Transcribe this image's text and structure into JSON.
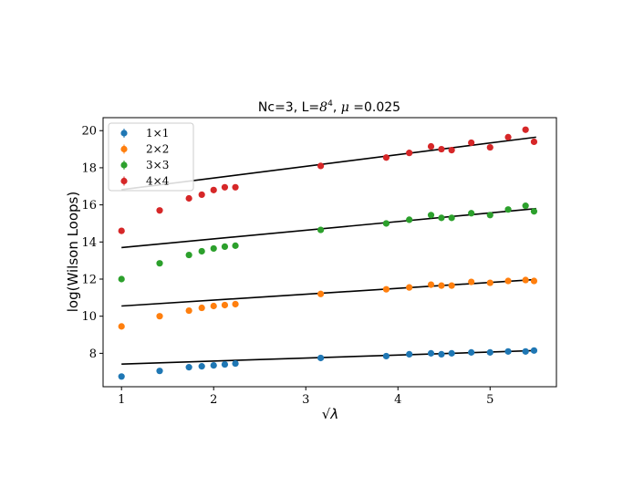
{
  "chart_data": {
    "type": "scatter",
    "title_prefix": "Nc=3, L=",
    "title_math_base": "8",
    "title_math_exp": "4",
    "title_mid": ", ",
    "title_mu": "μ",
    "title_suffix": " =0.025",
    "xlabel": "√λ",
    "ylabel": "log(Wilson Loops)",
    "xlim": [
      0.8,
      5.72
    ],
    "ylim": [
      6.2,
      20.7
    ],
    "xticks": [
      1,
      2,
      3,
      4,
      5
    ],
    "yticks": [
      8,
      10,
      12,
      14,
      16,
      18,
      20
    ],
    "grid": false,
    "legend_position": "top-left",
    "x": [
      1.0,
      1.414,
      1.732,
      1.871,
      2.0,
      2.121,
      2.236,
      3.162,
      3.873,
      4.123,
      4.359,
      4.472,
      4.583,
      4.796,
      5.0,
      5.196,
      5.385,
      5.477
    ],
    "series": [
      {
        "name": "1×1",
        "color": "#1f77b4",
        "values": [
          6.75,
          7.05,
          7.25,
          7.3,
          7.35,
          7.4,
          7.45,
          7.75,
          7.85,
          7.95,
          8.0,
          7.95,
          8.0,
          8.05,
          8.05,
          8.1,
          8.1,
          8.15
        ],
        "fit": [
          7.42,
          8.15
        ]
      },
      {
        "name": "2×2",
        "color": "#ff7f0e",
        "values": [
          9.45,
          10.0,
          10.3,
          10.45,
          10.55,
          10.6,
          10.65,
          11.2,
          11.45,
          11.55,
          11.7,
          11.65,
          11.65,
          11.85,
          11.8,
          11.9,
          11.95,
          11.9
        ],
        "fit": [
          10.55,
          11.98
        ]
      },
      {
        "name": "3×3",
        "color": "#2ca02c",
        "values": [
          12.0,
          12.85,
          13.3,
          13.5,
          13.65,
          13.75,
          13.8,
          14.65,
          15.0,
          15.2,
          15.45,
          15.3,
          15.3,
          15.55,
          15.45,
          15.75,
          15.95,
          15.65
        ],
        "fit": [
          13.7,
          15.8
        ]
      },
      {
        "name": "4×4",
        "color": "#d62728",
        "values": [
          14.6,
          15.7,
          16.35,
          16.55,
          16.8,
          16.95,
          16.95,
          18.1,
          18.55,
          18.8,
          19.15,
          19.0,
          18.95,
          19.35,
          19.1,
          19.65,
          20.05,
          19.4
        ],
        "fit": [
          16.82,
          19.65
        ]
      }
    ],
    "fit_x": [
      1.0,
      5.5
    ],
    "fit_color": "#000000"
  }
}
